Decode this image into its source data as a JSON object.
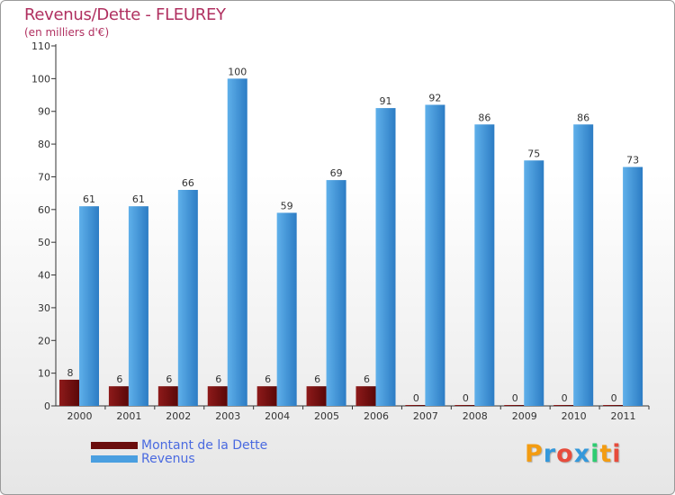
{
  "header": {
    "title": "Revenus/Dette - FLEUREY",
    "subtitle": "(en milliers d'€)"
  },
  "colors": {
    "dette": "#7a1010",
    "revenus": "#4a9fe0",
    "text_title": "#b03060",
    "legend_text": "#4a6ae0"
  },
  "chart_data": {
    "type": "bar",
    "title": "Revenus/Dette - FLEUREY",
    "subtitle": "(en milliers d'€)",
    "categories": [
      "2000",
      "2001",
      "2002",
      "2003",
      "2004",
      "2005",
      "2006",
      "2007",
      "2008",
      "2009",
      "2010",
      "2011"
    ],
    "series": [
      {
        "name": "Montant de la Dette",
        "values": [
          8,
          6,
          6,
          6,
          6,
          6,
          6,
          0,
          0,
          0,
          0,
          0
        ]
      },
      {
        "name": "Revenus",
        "values": [
          61,
          61,
          66,
          100,
          59,
          69,
          91,
          92,
          86,
          75,
          86,
          73
        ]
      }
    ],
    "ylim": [
      0,
      110
    ],
    "yticks": [
      0,
      10,
      20,
      30,
      40,
      50,
      60,
      70,
      80,
      90,
      100,
      110
    ],
    "grid": false,
    "legend_position": "bottom-left"
  },
  "legend": {
    "items": [
      {
        "label": "Montant de la Dette",
        "color": "#7a1010"
      },
      {
        "label": "Revenus",
        "color": "#4a9fe0"
      }
    ]
  },
  "logo": {
    "text": "Proxiti",
    "letter_colors": [
      "#f39c12",
      "#3498db",
      "#e74c3c",
      "#3498db",
      "#2ecc71",
      "#f39c12",
      "#e74c3c"
    ]
  }
}
